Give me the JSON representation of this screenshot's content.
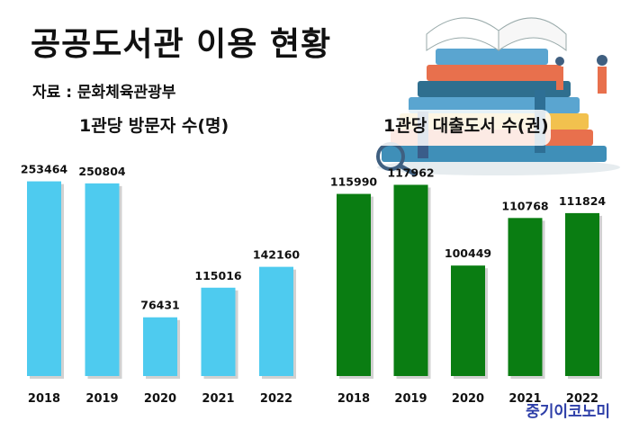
{
  "title": "공공도서관 이용 현황",
  "source": "자료 : 문화체육관광부",
  "brand": "중기이코노미",
  "colors": {
    "left_bar": "#4ecbef",
    "right_bar": "#0a7d12"
  },
  "chart_data": [
    {
      "type": "bar",
      "title": "1관당 방문자 수(명)",
      "categories": [
        "2018",
        "2019",
        "2020",
        "2021",
        "2022"
      ],
      "values": [
        253464,
        250804,
        76431,
        115016,
        142160
      ],
      "ylim": [
        0,
        260000
      ]
    },
    {
      "type": "bar",
      "title": "1관당 대출도서 수(권)",
      "categories": [
        "2018",
        "2019",
        "2020",
        "2021",
        "2022"
      ],
      "values": [
        115990,
        117962,
        100449,
        110768,
        111824
      ],
      "ylim": [
        80000,
        120000
      ]
    }
  ]
}
